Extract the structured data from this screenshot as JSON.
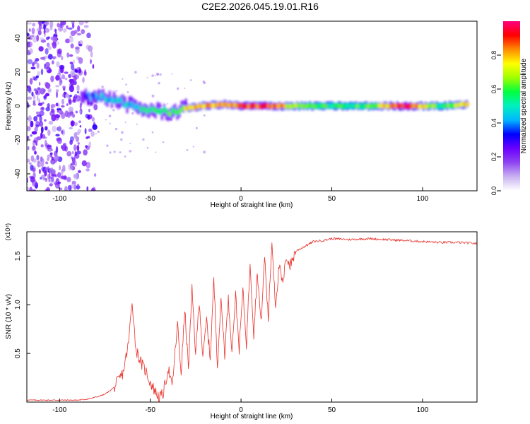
{
  "figure_title": "C2E2.2026.045.19.01.R16",
  "colors": {
    "snr_line": "#e8302a",
    "axis": "#000000",
    "background": "#ffffff"
  },
  "chart_data": [
    {
      "type": "heatmap",
      "name": "spectrogram",
      "xlabel": "Height of straight line (km)",
      "ylabel": "Frequency (Hz)",
      "xlim": [
        -118,
        130
      ],
      "ylim": [
        -50,
        50
      ],
      "x_ticks": [
        -100,
        -50,
        0,
        50,
        100
      ],
      "y_ticks": [
        -40,
        -20,
        0,
        20,
        40
      ],
      "colorbar": {
        "label": "Normalized spectral amplitude",
        "range": [
          0,
          1
        ],
        "ticks": [
          "0.0",
          "0.2",
          "0.4",
          "0.6",
          "0.8"
        ],
        "colormap": [
          "#ffffff",
          "#c9b3f2",
          "#8f44f0",
          "#6a00ff",
          "#0000ff",
          "#00b7ff",
          "#00f0c0",
          "#00ff40",
          "#a0ff00",
          "#ffff00",
          "#ff8c00",
          "#ff0000",
          "#ff0080"
        ]
      },
      "ridge_description": "noise scatter below -82 km; signal ridge from about +8 Hz at -85 km decreasing to about 0 Hz near -30 km, then near 0 to +2 Hz up to 130 km",
      "ridge": [
        {
          "x": -85,
          "y": 6,
          "amp": 0.35
        },
        {
          "x": -75,
          "y": 5,
          "amp": 0.45
        },
        {
          "x": -65,
          "y": 2,
          "amp": 0.45
        },
        {
          "x": -55,
          "y": -2,
          "amp": 0.5
        },
        {
          "x": -45,
          "y": -3,
          "amp": 0.6
        },
        {
          "x": -38,
          "y": -4,
          "amp": 0.6
        },
        {
          "x": -30,
          "y": -1,
          "amp": 0.75
        },
        {
          "x": -20,
          "y": 0,
          "amp": 0.8
        },
        {
          "x": -10,
          "y": 1,
          "amp": 0.85
        },
        {
          "x": 0,
          "y": 0,
          "amp": 0.85
        },
        {
          "x": 15,
          "y": 0,
          "amp": 0.9
        },
        {
          "x": 30,
          "y": 0,
          "amp": 0.65
        },
        {
          "x": 50,
          "y": 0,
          "amp": 0.55
        },
        {
          "x": 70,
          "y": 0,
          "amp": 0.6
        },
        {
          "x": 90,
          "y": 0,
          "amp": 0.95
        },
        {
          "x": 110,
          "y": 0,
          "amp": 0.55
        },
        {
          "x": 125,
          "y": 1,
          "amp": 0.8
        }
      ]
    },
    {
      "type": "line",
      "name": "snr",
      "xlabel": "Height of straight line (km)",
      "ylabel": "SNR (10 * v/v)",
      "y_scale_label": "(x10⁴)",
      "xlim": [
        -118,
        130
      ],
      "ylim": [
        0,
        1.75
      ],
      "x_ticks": [
        -100,
        -50,
        0,
        50,
        100
      ],
      "y_ticks": [
        "0.5",
        "1.0",
        "1.5"
      ],
      "series": [
        {
          "name": "SNR",
          "x": [
            -118,
            -90,
            -85,
            -80,
            -75,
            -70,
            -65,
            -62,
            -60,
            -58,
            -55,
            -52,
            -50,
            -47,
            -45,
            -43,
            -40,
            -38,
            -35,
            -33,
            -31,
            -29,
            -27,
            -25,
            -23,
            -21,
            -19,
            -17,
            -15,
            -13,
            -11,
            -9,
            -7,
            -5,
            -3,
            -1,
            1,
            3,
            5,
            7,
            9,
            11,
            13,
            15,
            17,
            19,
            21,
            23,
            25,
            27,
            30,
            35,
            40,
            45,
            50,
            60,
            70,
            80,
            90,
            100,
            110,
            120,
            130
          ],
          "y": [
            0.02,
            0.02,
            0.03,
            0.05,
            0.08,
            0.15,
            0.3,
            0.6,
            1.05,
            0.55,
            0.4,
            0.3,
            0.2,
            0.1,
            0.05,
            0.08,
            0.35,
            0.15,
            0.8,
            0.3,
            0.95,
            0.35,
            1.15,
            0.5,
            1.05,
            0.45,
            0.85,
            0.45,
            1.25,
            0.4,
            1.05,
            0.5,
            1.05,
            0.55,
            1.1,
            0.55,
            1.15,
            0.6,
            1.45,
            0.7,
            1.35,
            0.8,
            1.5,
            0.85,
            1.65,
            1.0,
            1.4,
            1.2,
            1.5,
            1.4,
            1.55,
            1.6,
            1.65,
            1.66,
            1.68,
            1.67,
            1.68,
            1.67,
            1.66,
            1.65,
            1.64,
            1.64,
            1.63
          ]
        }
      ]
    }
  ]
}
